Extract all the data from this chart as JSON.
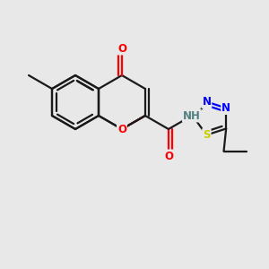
{
  "bg_color": "#e8e8e8",
  "bond_color": "#1a1a1a",
  "bond_width": 1.6,
  "atom_colors": {
    "O": "#ff0000",
    "N": "#0000ff",
    "S": "#cccc00",
    "C": "#1a1a1a",
    "H": "#508080"
  },
  "font_size": 8.5,
  "figsize": [
    3.0,
    3.0
  ],
  "dpi": 100,
  "xlim": [
    0,
    10
  ],
  "ylim": [
    0,
    10
  ]
}
